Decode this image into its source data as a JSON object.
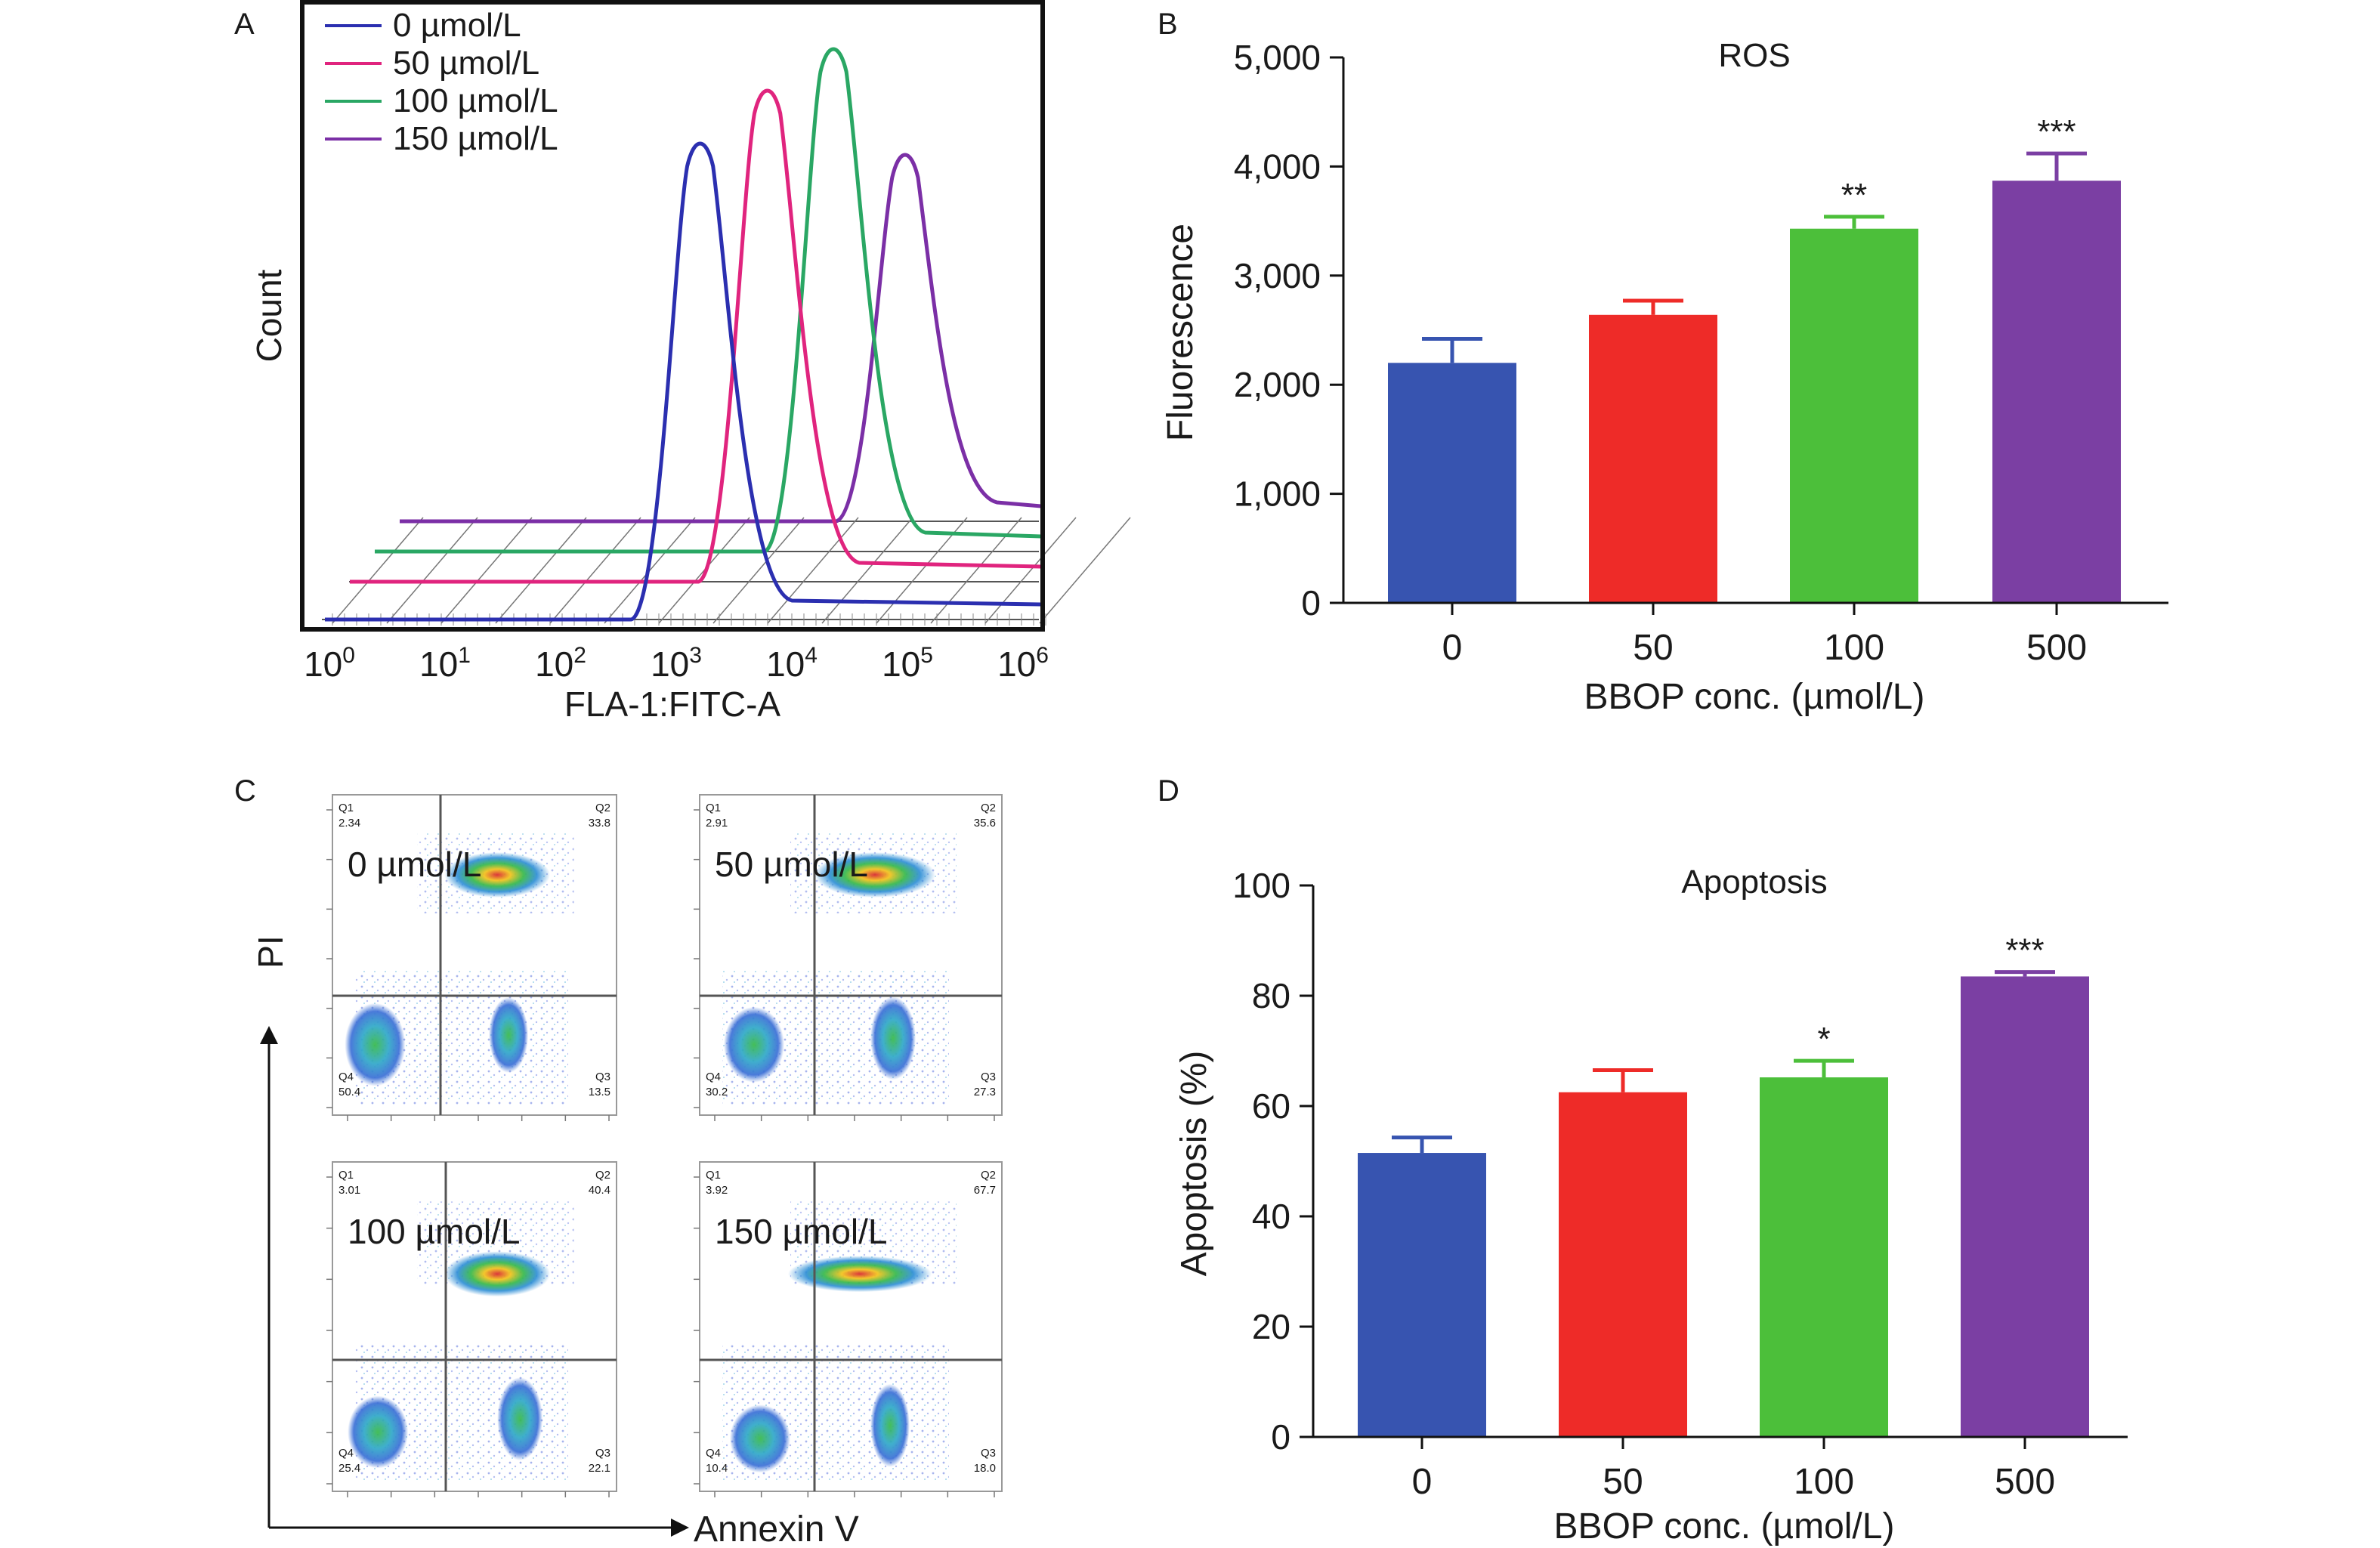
{
  "colors": {
    "blue": "#3754b0",
    "red": "#ee2b28",
    "green": "#4cbf3a",
    "purple": "#7b3fa3",
    "histogram_blue": "#2b2fb0",
    "histogram_pink": "#e0247e",
    "histogram_green": "#2aa764",
    "histogram_purple": "#7b2fa6"
  },
  "chart_data": [
    {
      "panel": "A",
      "type": "line",
      "title": "",
      "xlabel": "FLA-1:FITC-A",
      "ylabel": "Count",
      "x_scale": "log",
      "x_ticks": [
        "10",
        "10",
        "10",
        "10",
        "10",
        "10",
        "10"
      ],
      "x_tick_exponents": [
        "0",
        "1",
        "2",
        "3",
        "4",
        "5",
        "6"
      ],
      "legend_position": "top-left",
      "series": [
        {
          "name": "0 µmol/L",
          "peak_x": 1600,
          "color": "#2b2fb0"
        },
        {
          "name": "50 µmol/L",
          "peak_x": 6000,
          "color": "#e0247e"
        },
        {
          "name": "100 µmol/L",
          "peak_x": 22000,
          "color": "#2aa764"
        },
        {
          "name": "150 µmol/L",
          "peak_x": 90000,
          "color": "#7b2fa6"
        }
      ]
    },
    {
      "panel": "B",
      "type": "bar",
      "title": "ROS",
      "xlabel": "BBOP conc. (µmol/L)",
      "ylabel": "Fluorescence",
      "ylim": [
        0,
        5000
      ],
      "y_ticks": [
        "0",
        "1,000",
        "2,000",
        "3,000",
        "4,000",
        "5,000"
      ],
      "y_tick_values": [
        0,
        1000,
        2000,
        3000,
        4000,
        5000
      ],
      "categories": [
        "0",
        "50",
        "100",
        "500"
      ],
      "values": [
        2200,
        2640,
        3430,
        3870
      ],
      "errors": [
        220,
        130,
        110,
        250
      ],
      "significance": [
        "",
        "",
        "**",
        "***"
      ]
    },
    {
      "panel": "C",
      "type": "scatter",
      "xlabel": "Annexin V",
      "ylabel": "PI",
      "plots": [
        {
          "label": "0 µmol/L",
          "q1": "2.34",
          "q2": "33.8",
          "q3": "13.5",
          "q4": "50.4"
        },
        {
          "label": "50 µmol/L",
          "q1": "2.91",
          "q2": "35.6",
          "q3": "27.3",
          "q4": "30.2"
        },
        {
          "label": "100 µmol/L",
          "q1": "3.01",
          "q2": "40.4",
          "q3": "22.1",
          "q4": "25.4"
        },
        {
          "label": "150 µmol/L",
          "q1": "3.92",
          "q2": "67.7",
          "q3": "18.0",
          "q4": "10.4"
        }
      ],
      "quadrant_names": [
        "Q1",
        "Q2",
        "Q3",
        "Q4"
      ]
    },
    {
      "panel": "D",
      "type": "bar",
      "title": "Apoptosis",
      "xlabel": "BBOP conc. (µmol/L)",
      "ylabel": "Apoptosis (%)",
      "ylim": [
        0,
        100
      ],
      "y_ticks": [
        "0",
        "20",
        "40",
        "60",
        "80",
        "100"
      ],
      "y_tick_values": [
        0,
        20,
        40,
        60,
        80,
        100
      ],
      "categories": [
        "0",
        "50",
        "100",
        "500"
      ],
      "values": [
        51.5,
        62.5,
        65.2,
        83.5
      ],
      "errors": [
        2.8,
        4.0,
        3.0,
        0.8
      ],
      "significance": [
        "",
        "",
        "*",
        "***"
      ]
    }
  ]
}
